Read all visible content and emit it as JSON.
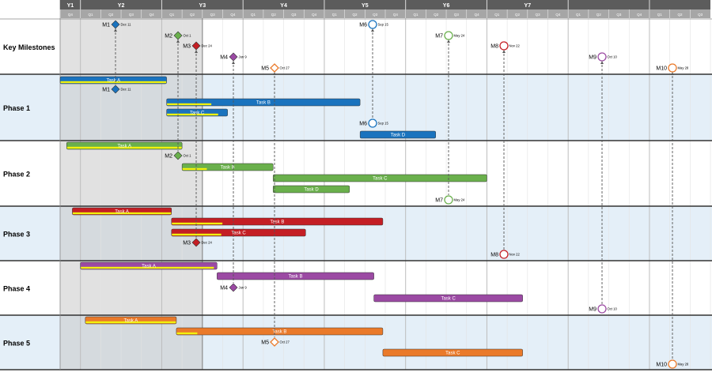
{
  "timeline": {
    "years": [
      "Y1",
      "Y2",
      "Y3",
      "Y4",
      "Y5",
      "Y6",
      "Y7"
    ],
    "quarter_labels": [
      "Q4",
      "Q1",
      "Q2",
      "Q3",
      "Q4",
      "Q1",
      "Q2",
      "Q3",
      "Q4",
      "Q1",
      "Q2",
      "Q3",
      "Q4",
      "Q1",
      "Q2",
      "Q3",
      "Q4",
      "Q1",
      "Q2",
      "Q3",
      "Q4",
      "Q1",
      "Q2",
      "Q3",
      "Q4",
      "Q1",
      "Q2",
      "Q3",
      "Q4",
      "Q1",
      "Q2",
      "Q3"
    ],
    "start_year": 1,
    "start_quarter": 3,
    "today_marker": "Y3 Q3"
  },
  "rows": [
    {
      "label": "Key Milestones",
      "bg": "#ffffff"
    },
    {
      "label": "Phase 1",
      "bg": "#e4eff8"
    },
    {
      "label": "Phase 2",
      "bg": "#ffffff"
    },
    {
      "label": "Phase 3",
      "bg": "#e4eff8"
    },
    {
      "label": "Phase 4",
      "bg": "#ffffff"
    },
    {
      "label": "Phase 5",
      "bg": "#e4eff8"
    }
  ],
  "colors": {
    "blue": "#1a73be",
    "green": "#6ab04c",
    "red": "#c41e24",
    "purple": "#9b4aa3",
    "orange": "#ea7a2a",
    "header": "#5c5c5c",
    "subheader": "#a6a6a6",
    "past_shade": "#c8c8c8",
    "progress": "#f2f20d"
  },
  "tasks": [
    {
      "row": 1,
      "label": "Task A",
      "color": "blue",
      "start": 1.0,
      "end": 2.31,
      "progress": 1.0
    },
    {
      "row": 1,
      "label": "Task B",
      "color": "blue",
      "start": 2.31,
      "end": 4.69,
      "progress": 0.23
    },
    {
      "row": 1,
      "label": "Task C",
      "color": "blue",
      "start": 2.31,
      "end": 3.06,
      "progress": 0.85
    },
    {
      "row": 1,
      "label": "Task D",
      "color": "blue",
      "start": 4.69,
      "end": 5.62,
      "progress": 0.0
    },
    {
      "row": 2,
      "label": "Task A",
      "color": "green",
      "start": 1.08,
      "end": 2.5,
      "progress": 1.0
    },
    {
      "row": 2,
      "label": "Task B",
      "color": "green",
      "start": 2.5,
      "end": 3.62,
      "progress": 0.27
    },
    {
      "row": 2,
      "label": "Task C",
      "color": "green",
      "start": 3.62,
      "end": 6.25,
      "progress": 0.0
    },
    {
      "row": 2,
      "label": "Task D",
      "color": "green",
      "start": 3.62,
      "end": 4.56,
      "progress": 0.0
    },
    {
      "row": 3,
      "label": "Task A",
      "color": "red",
      "start": 1.15,
      "end": 2.37,
      "progress": 1.0
    },
    {
      "row": 3,
      "label": "Task B",
      "color": "red",
      "start": 2.37,
      "end": 4.97,
      "progress": 0.24
    },
    {
      "row": 3,
      "label": "Task C",
      "color": "red",
      "start": 2.37,
      "end": 4.02,
      "progress": 0.37
    },
    {
      "row": 4,
      "label": "Task A",
      "color": "purple",
      "start": 1.25,
      "end": 2.93,
      "progress": 0.98
    },
    {
      "row": 4,
      "label": "Task B",
      "color": "purple",
      "start": 2.93,
      "end": 4.86,
      "progress": 0.0
    },
    {
      "row": 4,
      "label": "Task C",
      "color": "purple",
      "start": 4.86,
      "end": 6.69,
      "progress": 0.0
    },
    {
      "row": 5,
      "label": "Task A",
      "color": "orange",
      "start": 1.31,
      "end": 2.43,
      "progress": 1.0
    },
    {
      "row": 5,
      "label": "Task B",
      "color": "orange",
      "start": 2.43,
      "end": 4.97,
      "progress": 0.1
    },
    {
      "row": 5,
      "label": "Task C",
      "color": "orange",
      "start": 4.97,
      "end": 6.69,
      "progress": 0.0
    }
  ],
  "milestones": [
    {
      "id": "M1",
      "date": "Dec 11",
      "color": "blue",
      "shape": "diamond",
      "filled": true
    },
    {
      "id": "M2",
      "date": "Oct 1",
      "color": "green",
      "shape": "diamond",
      "filled": true
    },
    {
      "id": "M3",
      "date": "Dec 24",
      "color": "red",
      "shape": "diamond",
      "filled": true
    },
    {
      "id": "M4",
      "date": "Jun 9",
      "color": "purple",
      "shape": "diamond",
      "filled": true
    },
    {
      "id": "M5",
      "date": "Oct 27",
      "color": "orange",
      "shape": "diamond",
      "filled": false
    },
    {
      "id": "M6",
      "date": "Sep 15",
      "color": "blue",
      "shape": "circle",
      "filled": false
    },
    {
      "id": "M7",
      "date": "May 24",
      "color": "green",
      "shape": "circle",
      "filled": false
    },
    {
      "id": "M8",
      "date": "Nov 22",
      "color": "red",
      "shape": "circle",
      "filled": false
    },
    {
      "id": "M9",
      "date": "Oct 10",
      "color": "purple",
      "shape": "circle",
      "filled": false
    },
    {
      "id": "M10",
      "date": "May 28",
      "color": "orange",
      "shape": "circle",
      "filled": false
    }
  ]
}
